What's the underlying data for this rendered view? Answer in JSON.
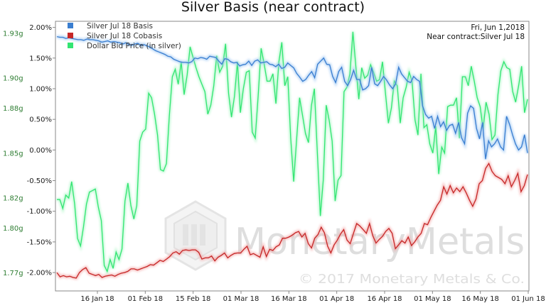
{
  "chart_data": {
    "type": "line",
    "title": "Silver Basis (near contract)",
    "date_label": "Fri, Jun 1,2018",
    "contract_label": "Near contract:Silver Jul 18",
    "watermark_name": "MonetaryMetals",
    "watermark_copyright": "© 2017 Monetary Metals & Co.",
    "x_ticks": [
      "16 Jan 18",
      "01 Feb 18",
      "15 Feb 18",
      "01 Mar 18",
      "16 Mar 18",
      "01 Apr 18",
      "16 Apr 18",
      "01 May 18",
      "16 May 18",
      "01 Jun 18"
    ],
    "y_left_ticks": [
      "1.77g",
      "1.80g",
      "1.82g",
      "1.85g",
      "1.88g",
      "1.90g",
      "1.93g"
    ],
    "y_right_ticks": [
      "-2.00%",
      "-1.50%",
      "-1.00%",
      "-0.50%",
      "0.00%",
      "0.50%",
      "1.00%",
      "1.50%",
      "2.00%"
    ],
    "y_right_range": [
      -2.3,
      2.1
    ],
    "y_left_range": [
      1.758,
      1.938
    ],
    "legend_position": "top-left",
    "series": [
      {
        "name": "Silver Jul 18 Basis",
        "color": "#3a7ed0",
        "axis": "right",
        "values": [
          1.85,
          1.84,
          1.84,
          1.82,
          1.83,
          1.82,
          1.81,
          1.8,
          1.8,
          1.79,
          1.81,
          1.8,
          1.8,
          1.79,
          1.78,
          1.76,
          1.77,
          1.78,
          1.76,
          1.77,
          1.76,
          1.75,
          1.73,
          1.75,
          1.72,
          1.71,
          1.73,
          1.74,
          1.71,
          1.72,
          1.7,
          1.68,
          1.65,
          1.62,
          1.6,
          1.58,
          1.56,
          1.53,
          1.52,
          1.48,
          1.46,
          1.44,
          1.43,
          1.43,
          1.42,
          1.44,
          1.5,
          1.49,
          1.51,
          1.5,
          1.48,
          1.53,
          1.52,
          1.51,
          1.45,
          1.4,
          1.49,
          1.48,
          1.44,
          1.42,
          1.43,
          1.37,
          1.39,
          1.4,
          1.45,
          1.38,
          1.45,
          1.47,
          1.42,
          1.43,
          1.44,
          1.4,
          1.39,
          1.36,
          1.4,
          1.33,
          1.35,
          1.42,
          1.38,
          1.34,
          1.25,
          1.19,
          1.12,
          1.15,
          1.22,
          1.28,
          1.18,
          1.4,
          1.45,
          1.5,
          1.4,
          1.39,
          1.2,
          1.1,
          1.28,
          1.35,
          1.12,
          1.05,
          1.15,
          1.3,
          1.15,
          1.15,
          0.98,
          1.0,
          1.05,
          1.35,
          1.08,
          1.05,
          1.12,
          1.2,
          1.14,
          1.06,
          1.0,
          1.08,
          1.35,
          1.24,
          1.18,
          1.12,
          1.1,
          1.2,
          1.15,
          1.12,
          0.72,
          0.58,
          0.52,
          0.55,
          0.35,
          0.55,
          0.38,
          0.46,
          0.32,
          0.4,
          0.42,
          0.27,
          0.45,
          0.2,
          0.1,
          0.6,
          0.72,
          0.68,
          0.35,
          0.18,
          0.45,
          -0.15,
          0.15,
          0.05,
          0.1,
          0.18,
          0.05,
          0.0,
          0.55,
          0.42,
          0.25,
          0.1,
          0.0,
          0.05,
          0.25,
          -0.05
        ]
      },
      {
        "name": "Silver Jul 18 Cobasis",
        "color": "#c62828",
        "axis": "right",
        "values": [
          -2.0,
          -2.07,
          -2.05,
          -2.07,
          -2.06,
          -2.08,
          -2.09,
          -2.0,
          -1.95,
          -1.92,
          -2.01,
          -2.03,
          -2.05,
          -2.03,
          -2.08,
          -2.06,
          -2.05,
          -2.04,
          -2.06,
          -2.03,
          -2.01,
          -2.0,
          -1.98,
          -1.94,
          -1.94,
          -1.96,
          -1.94,
          -1.92,
          -1.9,
          -1.87,
          -1.88,
          -1.84,
          -1.8,
          -1.82,
          -1.78,
          -1.74,
          -1.68,
          -1.66,
          -1.7,
          -1.64,
          -1.63,
          -1.64,
          -1.63,
          -1.63,
          -1.67,
          -1.78,
          -1.76,
          -1.76,
          -1.73,
          -1.81,
          -1.75,
          -1.72,
          -1.68,
          -1.76,
          -1.72,
          -1.69,
          -1.68,
          -1.68,
          -1.62,
          -1.57,
          -1.71,
          -1.69,
          -1.72,
          -1.75,
          -1.58,
          -1.74,
          -1.62,
          -1.64,
          -1.58,
          -1.55,
          -1.44,
          -1.44,
          -1.42,
          -1.39,
          -1.35,
          -1.33,
          -1.42,
          -1.36,
          -1.53,
          -1.6,
          -1.44,
          -1.38,
          -1.26,
          -1.35,
          -1.57,
          -1.68,
          -1.55,
          -1.47,
          -1.37,
          -1.3,
          -1.47,
          -1.53,
          -1.36,
          -1.2,
          -1.24,
          -1.3,
          -1.36,
          -1.2,
          -1.4,
          -1.52,
          -1.46,
          -1.41,
          -1.33,
          -1.28,
          -1.36,
          -1.61,
          -1.55,
          -1.48,
          -1.52,
          -1.42,
          -1.56,
          -1.5,
          -1.42,
          -1.36,
          -1.2,
          -1.22,
          -1.1,
          -1.0,
          -0.9,
          -0.82,
          -0.6,
          -0.72,
          -0.58,
          -0.7,
          -0.62,
          -0.68,
          -0.6,
          -0.7,
          -0.82,
          -0.92,
          -0.8,
          -0.55,
          -0.5,
          -0.3,
          -0.22,
          -0.35,
          -0.42,
          -0.45,
          -0.48,
          -0.55,
          -0.42,
          -0.6,
          -0.5,
          -0.38,
          -0.68,
          -0.58,
          -0.4
        ]
      },
      {
        "name": "Dollar Bid Price (in silver)",
        "color": "#33e572",
        "axis": "left",
        "values": [
          1.819,
          1.819,
          1.813,
          1.822,
          1.82,
          1.831,
          1.816,
          1.793,
          1.788,
          1.801,
          1.816,
          1.824,
          1.825,
          1.826,
          1.814,
          1.805,
          1.775,
          1.771,
          1.779,
          1.773,
          1.784,
          1.779,
          1.786,
          1.818,
          1.83,
          1.815,
          1.806,
          1.815,
          1.858,
          1.864,
          1.866,
          1.89,
          1.887,
          1.876,
          1.862,
          1.839,
          1.838,
          1.843,
          1.875,
          1.901,
          1.906,
          1.896,
          1.911,
          1.889,
          1.902,
          1.921,
          1.914,
          1.907,
          1.901,
          1.896,
          1.891,
          1.876,
          1.882,
          1.895,
          1.915,
          1.904,
          1.908,
          1.923,
          1.89,
          1.874,
          1.888,
          1.911,
          1.877,
          1.893,
          1.904,
          1.905,
          1.864,
          1.86,
          1.888,
          1.92,
          1.91,
          1.898,
          1.898,
          1.903,
          1.883,
          1.911,
          1.924,
          1.895,
          1.901,
          1.86,
          1.831,
          1.859,
          1.887,
          1.875,
          1.863,
          1.857,
          1.882,
          1.893,
          1.85,
          1.808,
          1.832,
          1.882,
          1.872,
          1.858,
          1.818,
          1.832,
          1.835,
          1.891,
          1.894,
          1.903,
          1.931,
          1.908,
          1.886,
          1.907,
          1.9,
          1.902,
          1.909,
          1.904,
          1.898,
          1.899,
          1.911,
          1.89,
          1.87,
          1.88,
          1.898,
          1.895,
          1.87,
          1.887,
          1.894,
          1.904,
          1.898,
          1.872,
          1.862,
          1.903,
          1.867,
          1.869,
          1.856,
          1.85,
          1.868,
          1.836,
          1.854,
          1.85,
          1.881,
          1.882,
          1.882,
          1.887,
          1.86,
          1.901,
          1.901,
          1.895,
          1.908,
          1.898,
          1.887,
          1.881,
          1.866,
          1.884,
          1.876,
          1.859,
          1.862,
          1.889,
          1.905,
          1.911,
          1.907,
          1.906,
          1.891,
          1.884,
          1.895,
          1.908,
          1.877,
          1.886
        ]
      }
    ]
  }
}
